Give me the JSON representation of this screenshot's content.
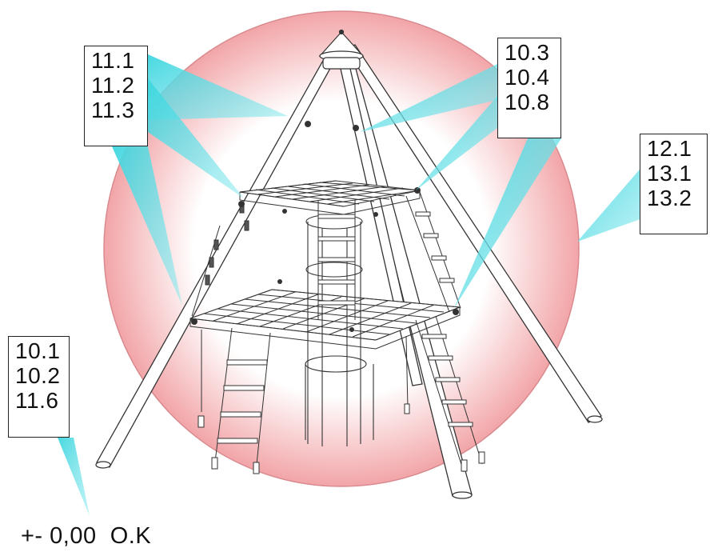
{
  "callouts": [
    {
      "id": "upper",
      "lines": [
        "11.1",
        "11.2",
        "11.3"
      ]
    },
    {
      "id": "upper-right",
      "lines": [
        "10.3",
        "10.4",
        "10.8"
      ]
    },
    {
      "id": "right",
      "lines": [
        "12.1",
        "13.1",
        "13.2"
      ]
    },
    {
      "id": "ground",
      "lines": [
        "10.1",
        "10.2",
        "11.6"
      ]
    }
  ],
  "ground_level_label": "+- 0,00  O.K",
  "colors": {
    "zone_fill_center": "#ffffff",
    "zone_fill_edge": "#f2a5a8",
    "zone_outline": "#d98a8e",
    "callout_beam": "#3ed6df",
    "structure_line": "#333333",
    "pole_fill": "#ffffff"
  }
}
